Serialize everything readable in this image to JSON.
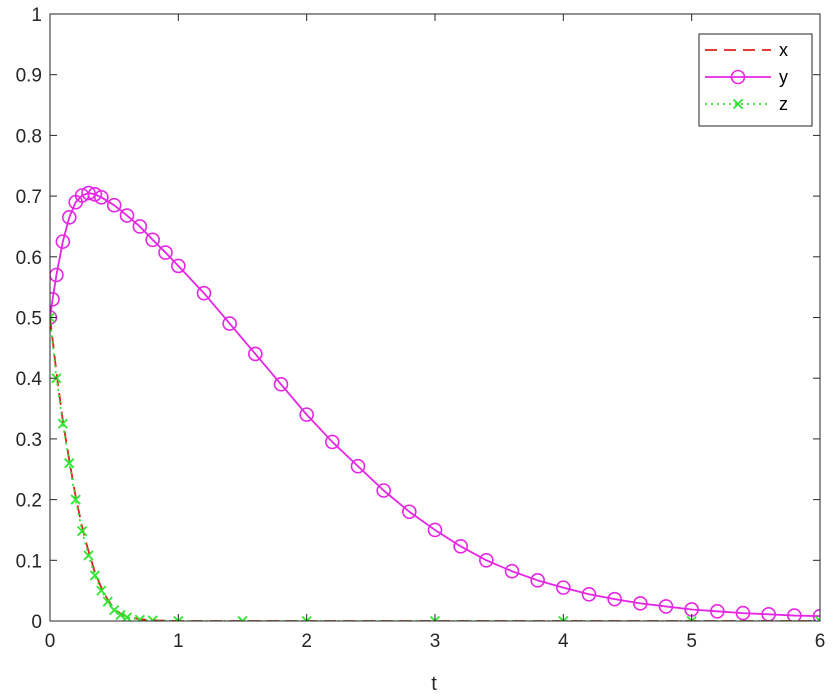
{
  "chart_data": {
    "type": "line",
    "xlabel": "t",
    "ylabel": "",
    "xlim": [
      0,
      6
    ],
    "ylim": [
      0,
      1
    ],
    "xticks": [
      "0",
      "1",
      "2",
      "3",
      "4",
      "5",
      "6"
    ],
    "yticks": [
      "0",
      "0.1",
      "0.2",
      "0.3",
      "0.4",
      "0.5",
      "0.6",
      "0.7",
      "0.8",
      "0.9",
      "1"
    ],
    "grid": false,
    "legend_position": "top-right",
    "series": [
      {
        "name": "x",
        "color": "#e0201b",
        "line_style": "dashed",
        "marker": "none",
        "x": [
          0,
          0.05,
          0.1,
          0.15,
          0.2,
          0.25,
          0.3,
          0.35,
          0.4,
          0.45,
          0.5,
          0.55,
          0.6,
          0.7,
          0.8,
          1.0,
          1.5,
          2,
          3,
          4,
          5,
          6
        ],
        "y": [
          0.5,
          0.41,
          0.33,
          0.265,
          0.205,
          0.155,
          0.115,
          0.08,
          0.055,
          0.035,
          0.02,
          0.012,
          0.007,
          0.003,
          0.001,
          0,
          0,
          0,
          0,
          0,
          0,
          0
        ]
      },
      {
        "name": "y",
        "color": "#e625e6",
        "line_style": "solid",
        "marker": "circle",
        "x": [
          0,
          0.02,
          0.05,
          0.1,
          0.15,
          0.2,
          0.25,
          0.3,
          0.35,
          0.4,
          0.5,
          0.6,
          0.7,
          0.8,
          0.9,
          1.0,
          1.2,
          1.4,
          1.6,
          1.8,
          2.0,
          2.2,
          2.4,
          2.6,
          2.8,
          3.0,
          3.2,
          3.4,
          3.6,
          3.8,
          4.0,
          4.2,
          4.4,
          4.6,
          4.8,
          5.0,
          5.2,
          5.4,
          5.6,
          5.8,
          6.0
        ],
        "y": [
          0.5,
          0.53,
          0.57,
          0.625,
          0.665,
          0.69,
          0.701,
          0.705,
          0.703,
          0.698,
          0.685,
          0.668,
          0.65,
          0.628,
          0.607,
          0.585,
          0.54,
          0.49,
          0.44,
          0.39,
          0.34,
          0.295,
          0.255,
          0.215,
          0.18,
          0.15,
          0.123,
          0.1,
          0.082,
          0.067,
          0.055,
          0.044,
          0.036,
          0.029,
          0.024,
          0.019,
          0.016,
          0.013,
          0.011,
          0.009,
          0.008
        ]
      },
      {
        "name": "z",
        "color": "#2ee62e",
        "line_style": "dotted",
        "marker": "x",
        "x": [
          0,
          0.05,
          0.1,
          0.15,
          0.2,
          0.25,
          0.3,
          0.35,
          0.4,
          0.45,
          0.5,
          0.55,
          0.6,
          0.7,
          0.8,
          1.0,
          1.5,
          2,
          3,
          4,
          5,
          6
        ],
        "y": [
          0.5,
          0.4,
          0.325,
          0.26,
          0.2,
          0.148,
          0.108,
          0.075,
          0.05,
          0.032,
          0.018,
          0.01,
          0.006,
          0.002,
          0.001,
          0,
          0,
          0,
          0,
          0,
          0,
          0
        ]
      }
    ]
  }
}
